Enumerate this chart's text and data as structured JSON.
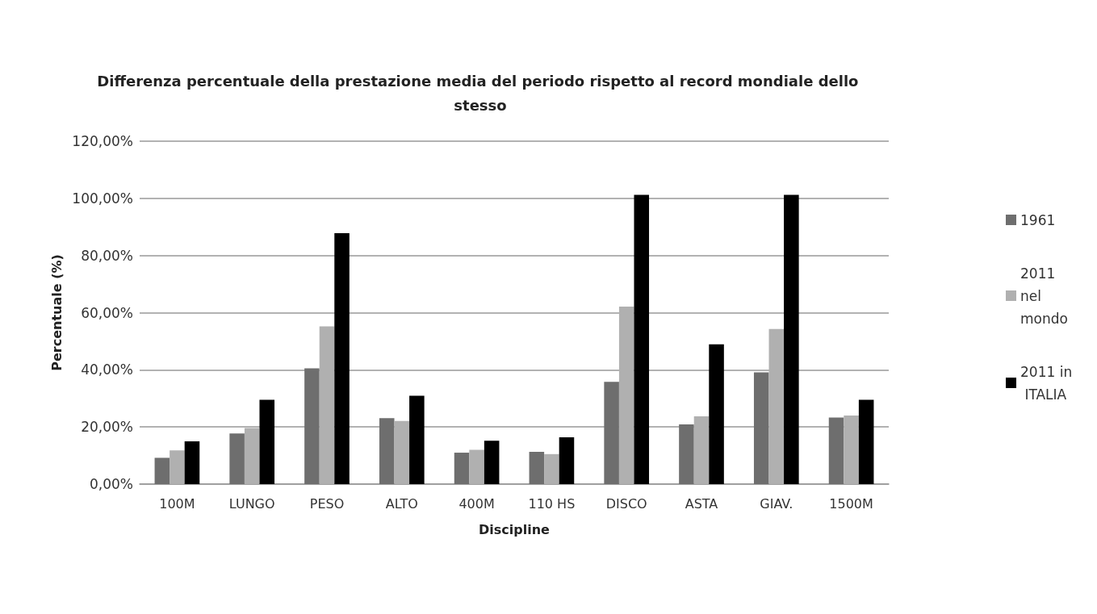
{
  "chart_data": {
    "type": "bar",
    "title": "Differenza percentuale della prestazione media del periodo rispetto al record mondiale dello stesso",
    "xlabel": "Discipline",
    "ylabel": "Percentuale (%)",
    "categories": [
      "100M",
      "LUNGO",
      "PESO",
      "ALTO",
      "400M",
      "110 HS",
      "DISCO",
      "ASTA",
      "GIAV.",
      "1500M"
    ],
    "series": [
      {
        "name": "1961",
        "color": "#6e6e6e",
        "values": [
          9.2,
          17.7,
          40.5,
          23.1,
          11.0,
          11.3,
          35.8,
          20.9,
          39.1,
          23.3
        ]
      },
      {
        "name": "2011 nel mondo",
        "color": "#b0b0b0",
        "values": [
          11.8,
          19.6,
          55.2,
          22.1,
          12.0,
          10.5,
          62.1,
          23.7,
          54.3,
          24.0
        ]
      },
      {
        "name": "2011 in ITALIA",
        "color": "#000000",
        "values": [
          15.0,
          29.5,
          87.8,
          30.9,
          15.2,
          16.4,
          101.2,
          48.9,
          101.2,
          29.5
        ]
      }
    ],
    "ylim": [
      0,
      120
    ],
    "yticks": [
      {
        "value": 0,
        "label": "0,00%"
      },
      {
        "value": 20,
        "label": "20,00%"
      },
      {
        "value": 40,
        "label": "40,00%"
      },
      {
        "value": 60,
        "label": "60,00%"
      },
      {
        "value": 80,
        "label": "80,00%"
      },
      {
        "value": 100,
        "label": "100,00%"
      },
      {
        "value": 120,
        "label": "120,00%"
      }
    ],
    "grid": "y",
    "legend": "right"
  }
}
